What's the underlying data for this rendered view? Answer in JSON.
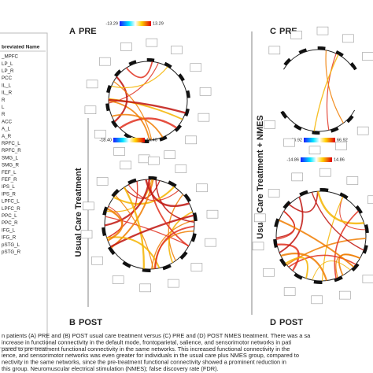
{
  "table": {
    "header": "breviated Name",
    "rows": [
      "_MPFC",
      "LP_L",
      "LP_R",
      "PCC",
      "IL_L",
      "IL_R",
      "R",
      "L",
      "R",
      "ACC",
      "A_L",
      "A_R",
      "RPFC_L",
      "RPFC_R",
      "SMG_L",
      "SMG_R",
      "FEF_L",
      "FEF_R",
      "IPS_L",
      "IPS_R",
      "LPFC_L",
      "LPFC_R",
      "PPC_L",
      "PPC_R",
      "IFG_L",
      "IFG_R",
      "pSTG_L",
      "pSTG_R"
    ]
  },
  "panels": [
    {
      "letter": "A",
      "label": "PRE",
      "scale_min": "-13.29",
      "scale_max": "13.29"
    },
    {
      "letter": "B",
      "label": "POST",
      "scale_min": "-18.40",
      "scale_max": "18.40"
    },
    {
      "letter": "C",
      "label": "PRE",
      "scale_min": "-66.92",
      "scale_max": "66.92"
    },
    {
      "letter": "D",
      "label": "POST",
      "scale_min": "-14.86",
      "scale_max": "14.86"
    }
  ],
  "group_labels": [
    "Usual Care Treatment",
    "Usual Care Treatment + NMES"
  ],
  "caption": [
    "n patients (A) PRE and (B) POST usual care treatment versus (C) PRE and (D) POST NMES treatment. There was a sa",
    "increase in functional connectivity in the default mode, frontoparietal, salience, and sensorimotor networks in pati",
    "pared to pre-treatment functional connectivity in the same networks. This increased functional connectivity in the",
    "ience, and sensorimotor networks was even greater for individuals in the usual care plus NMES group, compared to",
    "nectivity in the same networks, since the pre-treatment functional connectivity showed a prominent reduction in",
    "this group. Neuromuscular electrical stimulation (NMES); false discovery rate (FDR)."
  ]
}
